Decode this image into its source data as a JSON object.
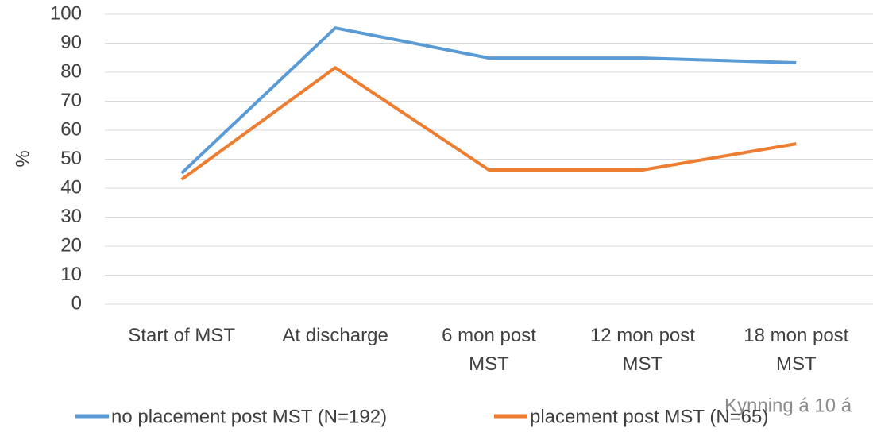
{
  "chart_data": {
    "type": "line",
    "ylabel": "%",
    "categories": [
      "Start of MST",
      "At discharge",
      "6 mon post MST",
      "12 mon post MST",
      "18 mon post MST"
    ],
    "series": [
      {
        "name": "no placement post MST (N=192)",
        "color": "#5b9bd5",
        "values": [
          45.2,
          95.3,
          84.9,
          84.9,
          83.3
        ]
      },
      {
        "name": "placement post MST (N=65)",
        "color": "#ed7d31",
        "values": [
          43,
          81.6,
          46.3,
          46.3,
          55.3
        ]
      }
    ],
    "ylim": [
      0,
      100
    ],
    "yticks": [
      0,
      10,
      20,
      30,
      40,
      50,
      60,
      70,
      80,
      90,
      100
    ],
    "grid": true,
    "legend": "bottom",
    "footer": "Kynning á 10 á"
  }
}
